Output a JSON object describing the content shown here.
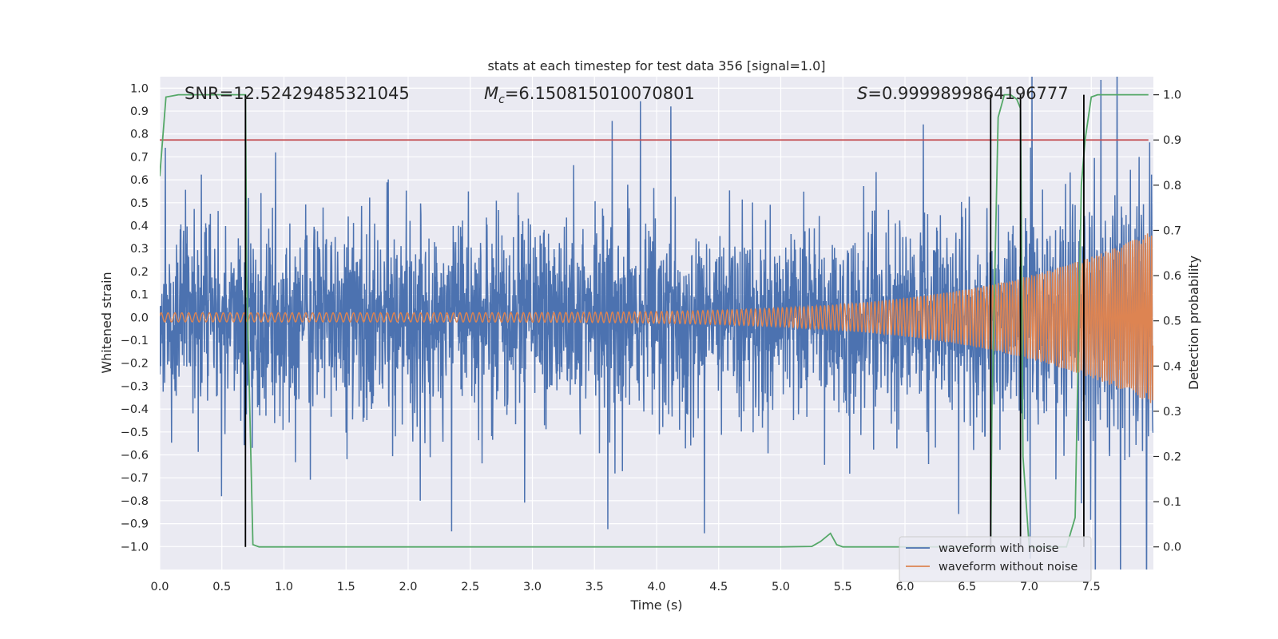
{
  "chart_data": {
    "type": "line",
    "title": "stats at each timestep for test data 356 [signal=1.0]",
    "xlabel": "Time (s)",
    "ylabel_left": "Whitened strain",
    "ylabel_right": "Detection probability",
    "xlim": [
      0.0,
      8.0
    ],
    "ylim_left": [
      -1.1,
      1.05
    ],
    "ylim_right": [
      -0.05,
      1.04
    ],
    "x_ticks": [
      "0.0",
      "0.5",
      "1.0",
      "1.5",
      "2.0",
      "2.5",
      "3.0",
      "3.5",
      "4.0",
      "4.5",
      "5.0",
      "5.5",
      "6.0",
      "6.5",
      "7.0",
      "7.5"
    ],
    "x_tick_values": [
      0.0,
      0.5,
      1.0,
      1.5,
      2.0,
      2.5,
      3.0,
      3.5,
      4.0,
      4.5,
      5.0,
      5.5,
      6.0,
      6.5,
      7.0,
      7.5
    ],
    "y_left_ticks": [
      "1.0",
      "0.9",
      "0.8",
      "0.7",
      "0.6",
      "0.5",
      "0.4",
      "0.3",
      "0.2",
      "0.1",
      "0.0",
      "−0.1",
      "−0.2",
      "−0.3",
      "−0.4",
      "−0.5",
      "−0.6",
      "−0.7",
      "−0.8",
      "−0.9",
      "−1.0"
    ],
    "y_left_tick_values": [
      1.0,
      0.9,
      0.8,
      0.7,
      0.6,
      0.5,
      0.4,
      0.3,
      0.2,
      0.1,
      0.0,
      -0.1,
      -0.2,
      -0.3,
      -0.4,
      -0.5,
      -0.6,
      -0.7,
      -0.8,
      -0.9,
      -1.0
    ],
    "y_right_ticks": [
      "1.0",
      "0.9",
      "0.8",
      "0.7",
      "0.6",
      "0.5",
      "0.4",
      "0.3",
      "0.2",
      "0.1",
      "0.0"
    ],
    "y_right_tick_values": [
      1.0,
      0.9,
      0.8,
      0.7,
      0.6,
      0.5,
      0.4,
      0.3,
      0.2,
      0.1,
      0.0
    ],
    "annotations": {
      "snr": "SNR=12.52429485321045",
      "mc_symbol": "M",
      "mc_sub": "c",
      "mc_value": "=6.150815010070801",
      "s_symbol": "S",
      "s_value": "=0.9999899864196777"
    },
    "threshold": 0.9,
    "vlines": [
      0.69,
      6.69,
      6.93,
      7.44
    ],
    "series": [
      {
        "name": "waveform with noise",
        "color": "#4c72b0",
        "axis": "left",
        "description": "noisy whitened strain, core band roughly ±0.35 with spikes up to about ±0.9"
      },
      {
        "name": "waveform without noise",
        "color": "#dd8452",
        "axis": "left",
        "amp_start": 0.02,
        "amp_end": 0.38,
        "freq_start": 18,
        "freq_end": 60
      },
      {
        "name": "detection probability",
        "color": "#55a868",
        "axis": "right",
        "x": [
          0.0,
          0.05,
          0.15,
          0.5,
          0.69,
          0.7,
          0.75,
          0.8,
          1.0,
          2.0,
          3.0,
          4.0,
          5.0,
          5.25,
          5.32,
          5.4,
          5.45,
          5.5,
          6.0,
          6.5,
          6.69,
          6.7,
          6.75,
          6.8,
          6.85,
          6.9,
          6.93,
          6.95,
          7.0,
          7.3,
          7.37,
          7.42,
          7.45,
          7.5,
          7.55,
          7.6,
          7.8,
          7.96
        ],
        "y": [
          0.82,
          0.995,
          1.0,
          1.0,
          1.0,
          0.6,
          0.005,
          0.0,
          0.0,
          0.0,
          0.0,
          0.0,
          0.0,
          0.001,
          0.012,
          0.03,
          0.005,
          0.0,
          0.0,
          0.0,
          0.0,
          0.3,
          0.95,
          1.0,
          1.0,
          0.99,
          0.97,
          0.2,
          0.0,
          0.0,
          0.065,
          0.8,
          0.9,
          0.995,
          1.0,
          1.0,
          1.0,
          1.0
        ]
      },
      {
        "name": "threshold",
        "color": "#c44e52",
        "axis": "right",
        "value": 0.9
      }
    ],
    "legend": {
      "placement": "lower-right",
      "entries": [
        {
          "label": "waveform with noise",
          "color": "#4c72b0"
        },
        {
          "label": "waveform without noise",
          "color": "#dd8452"
        }
      ]
    },
    "grid": true,
    "colors": {
      "plot_bg": "#eaeaf2",
      "grid": "#ffffff",
      "vline": "#000000"
    }
  }
}
